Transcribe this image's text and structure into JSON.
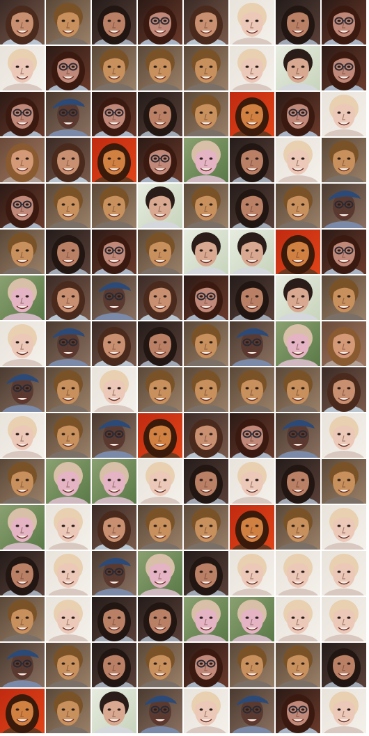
{
  "grid": {
    "rows": 16,
    "cols": 8,
    "types": {
      "a": {
        "bg1": "#3a2a26",
        "bg2": "#7a5a4a",
        "hair": "#4a2a1c",
        "skin": "#c89070",
        "shirt": "#b8c4d0",
        "hairStyle": "long",
        "glasses": false
      },
      "b": {
        "bg1": "#5a4838",
        "bg2": "#9a8068",
        "hair": "#7a5228",
        "skin": "#c8905c",
        "shirt": "#7a7068",
        "hairStyle": "short",
        "glasses": false
      },
      "c": {
        "bg1": "#241c1a",
        "bg2": "#5a4038",
        "hair": "#221612",
        "skin": "#b98066",
        "shirt": "#a0a8b4",
        "hairStyle": "long",
        "glasses": false
      },
      "d": {
        "bg1": "#2c1a16",
        "bg2": "#6a3a2a",
        "hair": "#3a1a10",
        "skin": "#c08878",
        "shirt": "#a8b4c4",
        "hairStyle": "long",
        "glasses": true
      },
      "e": {
        "bg1": "#e8e4dc",
        "bg2": "#f4f0ea",
        "hair": "#e8d0b0",
        "skin": "#ecc8b8",
        "shirt": "#d8c8c0",
        "hairStyle": "short",
        "glasses": false
      },
      "f": {
        "bg1": "#8aa070",
        "bg2": "#5a7a48",
        "hair": "#d8c0a8",
        "skin": "#e4b4c4",
        "shirt": "#d0b8c0",
        "hairStyle": "short",
        "glasses": false
      },
      "g": {
        "bg1": "#4a3a30",
        "bg2": "#8a7060",
        "hair": "#2a2428",
        "skin": "#5a3a30",
        "shirt": "#7a8aa8",
        "hairStyle": "cap",
        "glasses": true
      },
      "h": {
        "bg1": "#c02a10",
        "bg2": "#e04418",
        "hair": "#3a1a0a",
        "skin": "#d08040",
        "shirt": "#6a3a20",
        "hairStyle": "long",
        "glasses": false
      },
      "i": {
        "bg1": "#e6ece0",
        "bg2": "#c8d4bc",
        "hair": "#2a1c18",
        "skin": "#d8a890",
        "shirt": "#d4d8dc",
        "hairStyle": "short",
        "glasses": false
      },
      "j": {
        "bg1": "#6a4a3a",
        "bg2": "#a07860",
        "hair": "#8a5a30",
        "skin": "#d49a78",
        "shirt": "#b0a098",
        "hairStyle": "long",
        "glasses": false
      }
    },
    "cells": [
      [
        "a",
        "b",
        "c",
        "d",
        "a",
        "e",
        "c",
        "d"
      ],
      [
        "e",
        "d",
        "b",
        "b",
        "b",
        "e",
        "i",
        "d"
      ],
      [
        "d",
        "g",
        "d",
        "c",
        "b",
        "h",
        "d",
        "e"
      ],
      [
        "j",
        "a",
        "h",
        "d",
        "f",
        "c",
        "e",
        "b"
      ],
      [
        "d",
        "b",
        "b",
        "i",
        "b",
        "c",
        "b",
        "g"
      ],
      [
        "b",
        "c",
        "d",
        "b",
        "i",
        "i",
        "h",
        "d"
      ],
      [
        "f",
        "a",
        "g",
        "a",
        "d",
        "c",
        "i",
        "b"
      ],
      [
        "e",
        "g",
        "a",
        "c",
        "b",
        "g",
        "f",
        "j"
      ],
      [
        "g",
        "b",
        "e",
        "b",
        "b",
        "b",
        "b",
        "a"
      ],
      [
        "e",
        "b",
        "g",
        "h",
        "a",
        "d",
        "g",
        "e"
      ],
      [
        "b",
        "f",
        "f",
        "e",
        "c",
        "e",
        "c",
        "b"
      ],
      [
        "f",
        "e",
        "a",
        "b",
        "b",
        "h",
        "b",
        "e"
      ],
      [
        "c",
        "e",
        "g",
        "f",
        "c",
        "e",
        "e",
        "e"
      ],
      [
        "b",
        "e",
        "c",
        "c",
        "f",
        "f",
        "e",
        "e"
      ],
      [
        "g",
        "b",
        "c",
        "b",
        "d",
        "b",
        "b",
        "c"
      ],
      [
        "h",
        "b",
        "i",
        "g",
        "e",
        "g",
        "d",
        "e"
      ]
    ]
  }
}
